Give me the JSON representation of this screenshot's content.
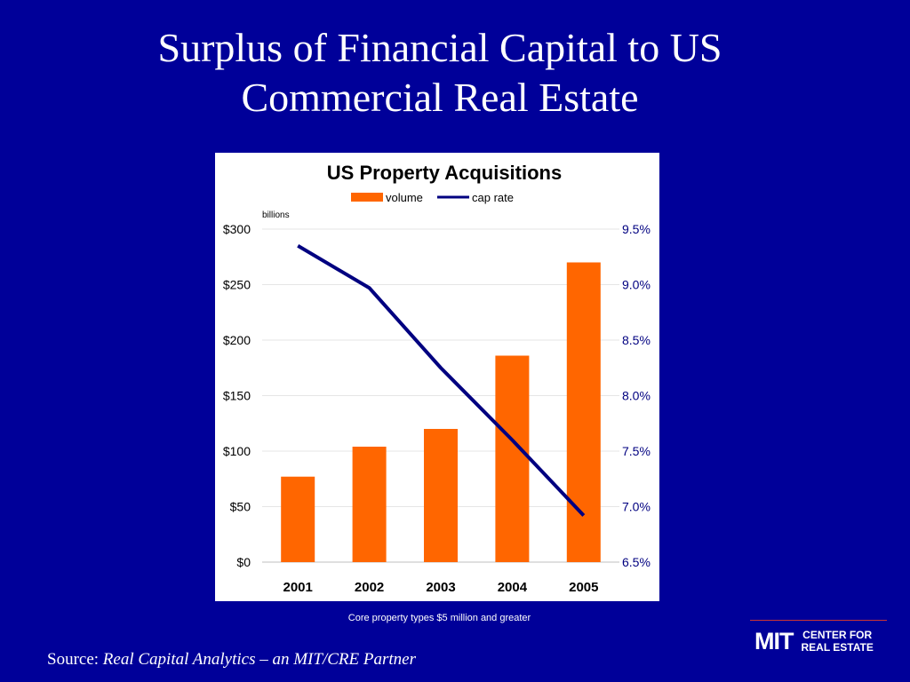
{
  "slide": {
    "title_line1": "Surplus of Financial Capital to US",
    "title_line2": "Commercial Real Estate",
    "footnote": "Core property types $5 million and greater",
    "source_prefix": "Source:",
    "source_text": "Real Capital Analytics – an MIT/CRE Partner",
    "logo_mark": "MIT",
    "logo_line1": "CENTER FOR",
    "logo_line2": "REAL ESTATE"
  },
  "colors": {
    "background": "#000099",
    "bar": "#ff6600",
    "line": "#000080"
  },
  "chart_data": {
    "type": "bar",
    "title": "US Property Acquisitions",
    "ylabel": "billions",
    "categories": [
      "2001",
      "2002",
      "2003",
      "2004",
      "2005"
    ],
    "series": [
      {
        "name": "volume",
        "type": "bar",
        "axis": "left",
        "values": [
          77,
          104,
          120,
          186,
          270
        ]
      },
      {
        "name": "cap rate",
        "type": "line",
        "axis": "right",
        "values": [
          9.35,
          8.97,
          8.25,
          7.6,
          6.92
        ]
      }
    ],
    "ylim": [
      0,
      300
    ],
    "y2lim": [
      6.5,
      9.5
    ],
    "yticks": [
      "$0",
      "$50",
      "$100",
      "$150",
      "$200",
      "$250",
      "$300"
    ],
    "y2ticks": [
      "6.5%",
      "7.0%",
      "7.5%",
      "8.0%",
      "8.5%",
      "9.0%",
      "9.5%"
    ],
    "grid": true,
    "legend": "top-center"
  }
}
